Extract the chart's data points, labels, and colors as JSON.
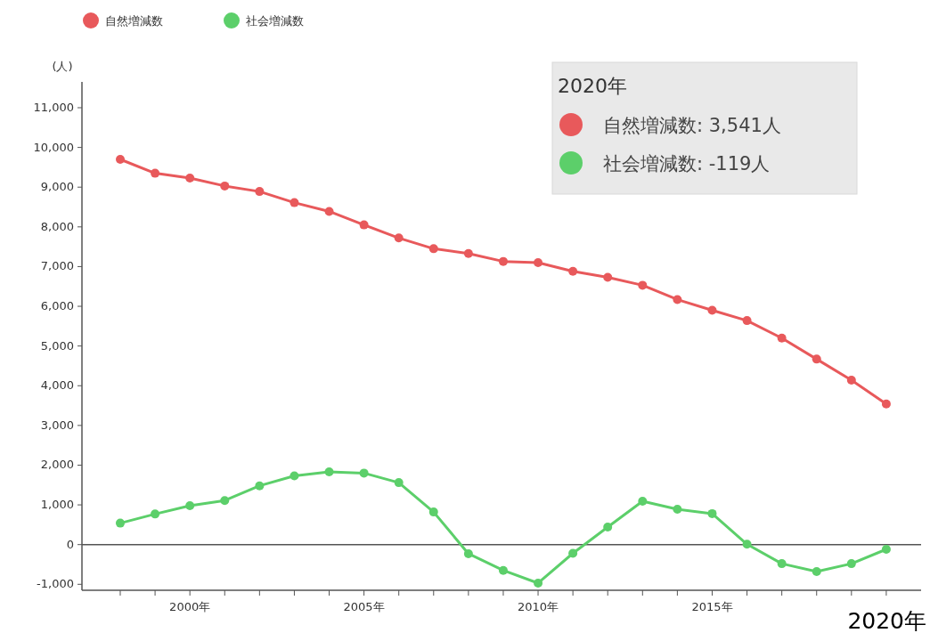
{
  "chart_data": {
    "type": "line",
    "ylabel": "(人)",
    "x": [
      1998,
      1999,
      2000,
      2001,
      2002,
      2003,
      2004,
      2005,
      2006,
      2007,
      2008,
      2009,
      2010,
      2011,
      2012,
      2013,
      2014,
      2015,
      2016,
      2017,
      2018,
      2019,
      2020
    ],
    "series": [
      {
        "name": "自然増減数",
        "color": "#e8595b",
        "values": [
          9700,
          9350,
          9230,
          9030,
          8890,
          8610,
          8390,
          8050,
          7720,
          7450,
          7330,
          7130,
          7100,
          6880,
          6730,
          6530,
          6170,
          5900,
          5640,
          5200,
          4670,
          4140,
          3541
        ]
      },
      {
        "name": "社会増減数",
        "color": "#5ccf6a",
        "values": [
          540,
          770,
          980,
          1110,
          1480,
          1730,
          1830,
          1800,
          1560,
          820,
          -230,
          -650,
          -970,
          -220,
          440,
          1090,
          890,
          780,
          10,
          -480,
          -680,
          -480,
          -119
        ]
      }
    ],
    "xlim": [
      1996.9,
      2021
    ],
    "xticks": [
      {
        "value": 1998,
        "label": null
      },
      {
        "value": 1999,
        "label": null
      },
      {
        "value": 2000,
        "label": "2000年"
      },
      {
        "value": 2001,
        "label": null
      },
      {
        "value": 2002,
        "label": null
      },
      {
        "value": 2003,
        "label": null
      },
      {
        "value": 2004,
        "label": null
      },
      {
        "value": 2005,
        "label": "2005年"
      },
      {
        "value": 2006,
        "label": null
      },
      {
        "value": 2007,
        "label": null
      },
      {
        "value": 2008,
        "label": null
      },
      {
        "value": 2009,
        "label": null
      },
      {
        "value": 2010,
        "label": "2010年"
      },
      {
        "value": 2011,
        "label": null
      },
      {
        "value": 2012,
        "label": null
      },
      {
        "value": 2013,
        "label": null
      },
      {
        "value": 2014,
        "label": null
      },
      {
        "value": 2015,
        "label": "2015年"
      },
      {
        "value": 2016,
        "label": null
      },
      {
        "value": 2017,
        "label": null
      },
      {
        "value": 2018,
        "label": null
      },
      {
        "value": 2019,
        "label": null
      },
      {
        "value": 2020,
        "label": null
      }
    ],
    "ylim": [
      -1150,
      11650
    ],
    "yticks": [
      {
        "value": -1000,
        "label": "-1,000"
      },
      0,
      {
        "value": 1000,
        "label": "1,000"
      },
      {
        "value": 2000,
        "label": "2,000"
      },
      {
        "value": 3000,
        "label": "3,000"
      },
      {
        "value": 4000,
        "label": "4,000"
      },
      {
        "value": 5000,
        "label": "5,000"
      },
      {
        "value": 6000,
        "label": "6,000"
      },
      {
        "value": 7000,
        "label": "7,000"
      },
      {
        "value": 8000,
        "label": "8,000"
      },
      {
        "value": 9000,
        "label": "9,000"
      },
      {
        "value": 10000,
        "label": "10,000"
      },
      {
        "value": 11000,
        "label": "11,000"
      }
    ],
    "ref_lines": [
      {
        "axis": "y",
        "value": 0,
        "color": "#555555"
      }
    ],
    "annotations": [
      "2020年",
      "自然増減数: 3,541人",
      "社会増減数: -119人",
      "2020年"
    ],
    "legend": "top left",
    "grid": false,
    "marker": "circle",
    "line_style": "solid"
  }
}
